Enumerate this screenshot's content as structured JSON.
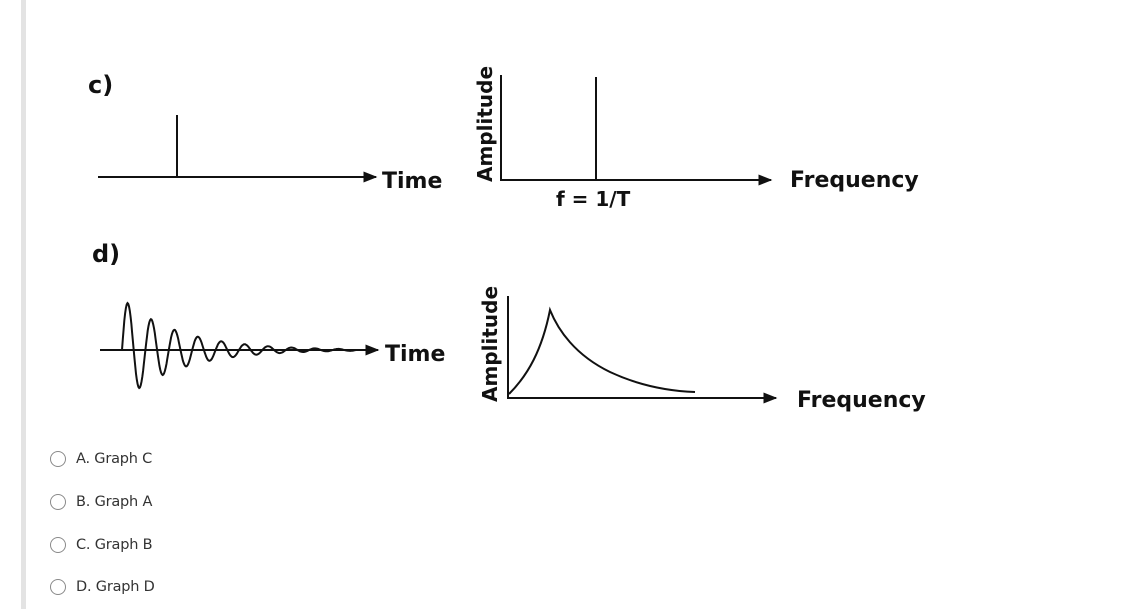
{
  "figure": {
    "panel_c": {
      "label": "c)",
      "time_axis_label": "Time",
      "amplitude_axis_label": "Amplitude",
      "frequency_axis_label": "Frequency",
      "spike_marker_label": "f = 1/T"
    },
    "panel_d": {
      "label": "d)",
      "time_axis_label": "Time",
      "amplitude_axis_label": "Amplitude",
      "frequency_axis_label": "Frequency"
    }
  },
  "options": [
    {
      "letter": "A",
      "label": "A. Graph C",
      "selected": false
    },
    {
      "letter": "B",
      "label": "B. Graph A",
      "selected": false
    },
    {
      "letter": "C",
      "label": "C. Graph B",
      "selected": false
    },
    {
      "letter": "D",
      "label": "D. Graph D",
      "selected": false
    }
  ]
}
